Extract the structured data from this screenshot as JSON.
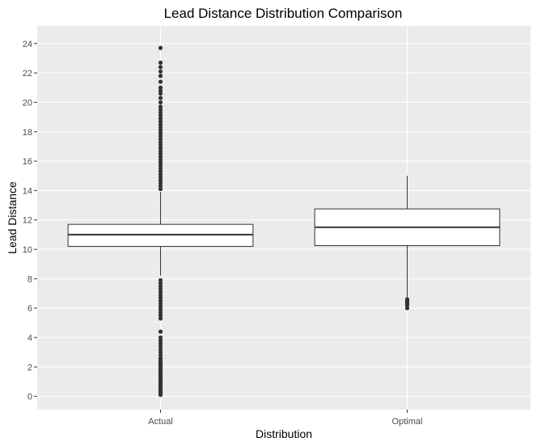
{
  "chart_data": {
    "type": "box",
    "title": "Lead Distance Distribution Comparison",
    "xlabel": "Distribution",
    "ylabel": "Lead Distance",
    "categories": [
      "Actual",
      "Optimal"
    ],
    "ylim": [
      -0.9,
      25.2
    ],
    "y_ticks": [
      0,
      2,
      4,
      6,
      8,
      10,
      12,
      14,
      16,
      18,
      20,
      22,
      24
    ],
    "grid": true,
    "boxes": [
      {
        "name": "Actual",
        "whisker_low": 8.2,
        "q1": 10.2,
        "median": 11.0,
        "q3": 11.7,
        "whisker_high": 13.9,
        "outliers": [
          0.1,
          0.2,
          0.3,
          0.4,
          0.5,
          0.6,
          0.7,
          0.8,
          0.9,
          1.0,
          1.1,
          1.2,
          1.3,
          1.4,
          1.5,
          1.6,
          1.7,
          1.8,
          1.9,
          2.0,
          2.1,
          2.2,
          2.3,
          2.4,
          2.5,
          2.6,
          2.8,
          3.0,
          3.2,
          3.4,
          3.6,
          3.8,
          4.0,
          4.4,
          5.3,
          5.5,
          5.7,
          5.9,
          6.1,
          6.3,
          6.5,
          6.7,
          6.9,
          7.1,
          7.3,
          7.5,
          7.7,
          7.9,
          14.1,
          14.3,
          14.5,
          14.7,
          14.9,
          15.1,
          15.3,
          15.5,
          15.7,
          15.9,
          16.1,
          16.3,
          16.5,
          16.7,
          16.9,
          17.1,
          17.3,
          17.5,
          17.7,
          17.9,
          18.1,
          18.3,
          18.5,
          18.7,
          18.9,
          19.1,
          19.3,
          19.5,
          19.7,
          20.0,
          20.3,
          20.6,
          20.8,
          21.0,
          21.4,
          21.8,
          22.1,
          22.4,
          22.7,
          23.7
        ]
      },
      {
        "name": "Optimal",
        "whisker_low": 6.7,
        "q1": 10.25,
        "median": 11.5,
        "q3": 12.75,
        "whisker_high": 15.0,
        "outliers": [
          6.0,
          6.2,
          6.3,
          6.4,
          6.5,
          6.6
        ]
      }
    ]
  },
  "colors": {
    "panel_background": "#ebebeb",
    "grid_major": "#ffffff",
    "grid_minor": "#f5f5f5",
    "box_fill": "#ffffff",
    "box_line": "#333333",
    "outlier": "#333333"
  }
}
